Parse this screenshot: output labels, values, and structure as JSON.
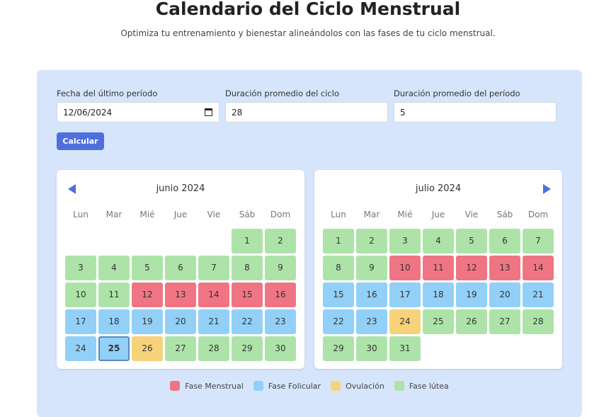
{
  "title": "Calendario del Ciclo Menstrual",
  "subtitle": "Optimiza tu entrenamiento y bienestar alineándolos con las fases de tu ciclo menstrual.",
  "form": {
    "last_period_label": "Fecha del último período",
    "last_period_value": "12/06/2024",
    "cycle_label": "Duración promedio del ciclo",
    "cycle_value": "28",
    "period_label": "Duración promedio del período",
    "period_value": "5",
    "calculate_label": "Calcular"
  },
  "weekdays": [
    "Lun",
    "Mar",
    "Mié",
    "Jue",
    "Vie",
    "Sáb",
    "Dom"
  ],
  "colors": {
    "M": "#f07584",
    "F": "#92d0f8",
    "O": "#f6d37a",
    "L": "#ade3a9"
  },
  "months": [
    {
      "title": "junio 2024",
      "start_offset": 5,
      "today": 25,
      "phases": [
        "L",
        "L",
        "L",
        "L",
        "L",
        "L",
        "L",
        "L",
        "L",
        "L",
        "L",
        "M",
        "M",
        "M",
        "M",
        "M",
        "F",
        "F",
        "F",
        "F",
        "F",
        "F",
        "F",
        "F",
        "F",
        "O",
        "L",
        "L",
        "L",
        "L"
      ]
    },
    {
      "title": "julio 2024",
      "start_offset": 0,
      "phases": [
        "L",
        "L",
        "L",
        "L",
        "L",
        "L",
        "L",
        "L",
        "L",
        "M",
        "M",
        "M",
        "M",
        "M",
        "F",
        "F",
        "F",
        "F",
        "F",
        "F",
        "F",
        "F",
        "F",
        "O",
        "L",
        "L",
        "L",
        "L",
        "L",
        "L",
        "L"
      ]
    }
  ],
  "legend": [
    {
      "code": "M",
      "label": "Fase Menstrual"
    },
    {
      "code": "F",
      "label": "Fase Folicular"
    },
    {
      "code": "O",
      "label": "Ovulación"
    },
    {
      "code": "L",
      "label": "Fase lútea"
    }
  ]
}
